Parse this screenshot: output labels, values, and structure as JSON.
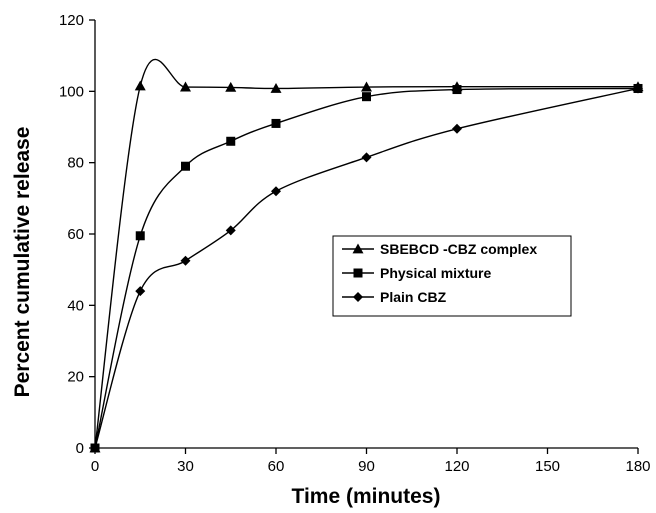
{
  "chart_data": {
    "type": "line",
    "xlabel": "Time (minutes)",
    "ylabel": "Percent cumulative release",
    "xlim": [
      0,
      180
    ],
    "ylim": [
      0,
      120
    ],
    "x_ticks": [
      0,
      30,
      60,
      90,
      120,
      150,
      180
    ],
    "y_ticks": [
      0,
      20,
      40,
      60,
      80,
      100,
      120
    ],
    "grid": false,
    "legend_position": "right-center",
    "series": [
      {
        "name": "SBEBCD -CBZ complex",
        "marker": "triangle",
        "x": [
          0,
          15,
          30,
          45,
          60,
          90,
          120,
          180
        ],
        "y": [
          0,
          101.5,
          101.2,
          101.1,
          100.8,
          101.2,
          101.3,
          101.3
        ]
      },
      {
        "name": "Physical mixture",
        "marker": "square",
        "x": [
          0,
          15,
          30,
          45,
          60,
          90,
          120,
          180
        ],
        "y": [
          0,
          59.5,
          79,
          86,
          91,
          98.5,
          100.5,
          100.8
        ]
      },
      {
        "name": "Plain CBZ",
        "marker": "diamond",
        "x": [
          0,
          15,
          30,
          45,
          60,
          90,
          120,
          180
        ],
        "y": [
          0,
          44,
          52.5,
          61,
          72,
          81.5,
          89.5,
          100.8
        ]
      }
    ]
  }
}
